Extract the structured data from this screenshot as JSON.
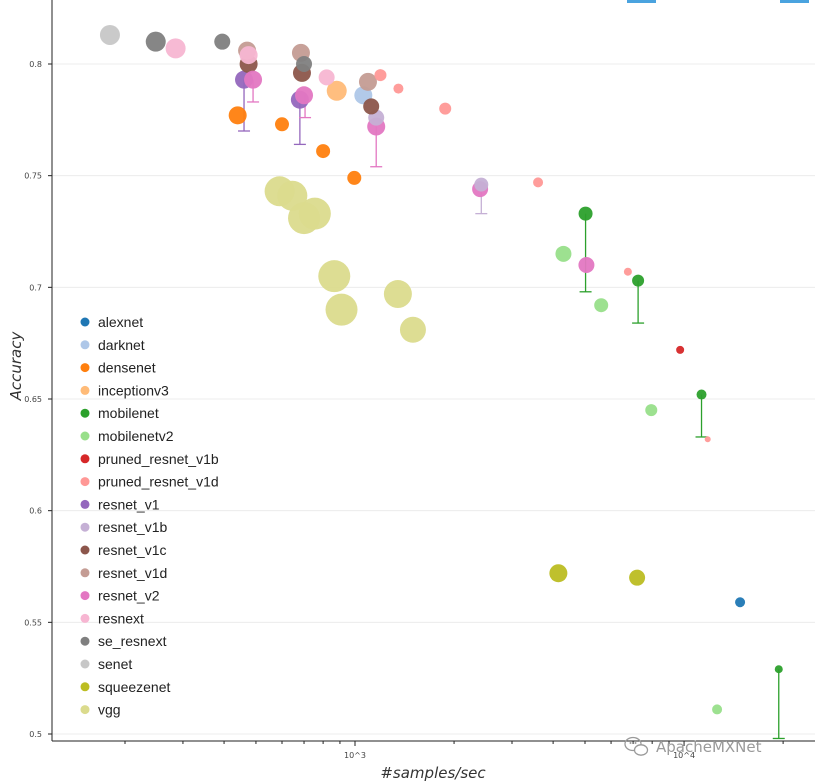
{
  "chart_data": {
    "type": "scatter",
    "title": "",
    "xlabel": "#samples/sec",
    "ylabel": "Accuracy",
    "x_scale": "log",
    "xlim": [
      120,
      25000
    ],
    "ylim": [
      0.498,
      0.826
    ],
    "x_ticks": [
      {
        "value": 1000,
        "label": "10^3"
      },
      {
        "value": 10000,
        "label": "10^4"
      }
    ],
    "y_ticks": [
      {
        "value": 0.5,
        "label": "0.5"
      },
      {
        "value": 0.55,
        "label": "0.55"
      },
      {
        "value": 0.6,
        "label": "0.6"
      },
      {
        "value": 0.65,
        "label": "0.65"
      },
      {
        "value": 0.7,
        "label": "0.7"
      },
      {
        "value": 0.75,
        "label": "0.75"
      },
      {
        "value": 0.8,
        "label": "0.8"
      }
    ],
    "grid": "horizontal",
    "legend_position": "left",
    "series": [
      {
        "name": "alexnet",
        "color": "#1f77b4",
        "points": [
          {
            "x": 14800,
            "y": 0.559,
            "size": 5
          }
        ]
      },
      {
        "name": "darknet",
        "color": "#aec7e8",
        "points": [
          {
            "x": 1060,
            "y": 0.786,
            "size": 9
          }
        ]
      },
      {
        "name": "densenet",
        "color": "#ff7f0e",
        "points": [
          {
            "x": 440,
            "y": 0.777,
            "size": 9
          },
          {
            "x": 600,
            "y": 0.773,
            "size": 7
          },
          {
            "x": 800,
            "y": 0.761,
            "size": 7
          },
          {
            "x": 995,
            "y": 0.749,
            "size": 7
          }
        ]
      },
      {
        "name": "inceptionv3",
        "color": "#ffbb78",
        "points": [
          {
            "x": 880,
            "y": 0.788,
            "size": 10
          }
        ]
      },
      {
        "name": "mobilenet",
        "color": "#2ca02c",
        "points": [
          {
            "x": 5020,
            "y": 0.733,
            "size": 7
          },
          {
            "x": 7250,
            "y": 0.703,
            "size": 6
          },
          {
            "x": 11300,
            "y": 0.652,
            "size": 5
          },
          {
            "x": 19400,
            "y": 0.529,
            "size": 4
          }
        ]
      },
      {
        "name": "mobilenetv2",
        "color": "#98df8a",
        "points": [
          {
            "x": 4300,
            "y": 0.715,
            "size": 8
          },
          {
            "x": 5600,
            "y": 0.692,
            "size": 7
          },
          {
            "x": 7950,
            "y": 0.645,
            "size": 6
          },
          {
            "x": 12600,
            "y": 0.511,
            "size": 5
          }
        ]
      },
      {
        "name": "pruned_resnet_v1b",
        "color": "#d62728",
        "points": [
          {
            "x": 9730,
            "y": 0.672,
            "size": 4
          }
        ]
      },
      {
        "name": "pruned_resnet_v1d",
        "color": "#ff9896",
        "points": [
          {
            "x": 1195,
            "y": 0.795,
            "size": 6
          },
          {
            "x": 1355,
            "y": 0.789,
            "size": 5
          },
          {
            "x": 1880,
            "y": 0.78,
            "size": 6
          },
          {
            "x": 3600,
            "y": 0.747,
            "size": 5
          },
          {
            "x": 6750,
            "y": 0.707,
            "size": 4
          },
          {
            "x": 11800,
            "y": 0.632,
            "size": 3
          }
        ]
      },
      {
        "name": "resnet_v1",
        "color": "#9467bd",
        "points": [
          {
            "x": 460,
            "y": 0.793,
            "size": 9
          },
          {
            "x": 680,
            "y": 0.784,
            "size": 9
          }
        ]
      },
      {
        "name": "resnet_v1b",
        "color": "#c5b0d5",
        "points": [
          {
            "x": 1160,
            "y": 0.776,
            "size": 8
          },
          {
            "x": 2420,
            "y": 0.746,
            "size": 7
          }
        ]
      },
      {
        "name": "resnet_v1c",
        "color": "#8c564b",
        "points": [
          {
            "x": 475,
            "y": 0.8,
            "size": 9
          },
          {
            "x": 690,
            "y": 0.796,
            "size": 9
          },
          {
            "x": 1120,
            "y": 0.781,
            "size": 8
          }
        ]
      },
      {
        "name": "resnet_v1d",
        "color": "#c49c94",
        "points": [
          {
            "x": 470,
            "y": 0.806,
            "size": 9
          },
          {
            "x": 685,
            "y": 0.805,
            "size": 9
          },
          {
            "x": 1095,
            "y": 0.792,
            "size": 9
          }
        ]
      },
      {
        "name": "resnet_v2",
        "color": "#e377c2",
        "points": [
          {
            "x": 490,
            "y": 0.793,
            "size": 9
          },
          {
            "x": 700,
            "y": 0.786,
            "size": 9
          },
          {
            "x": 1160,
            "y": 0.772,
            "size": 9
          },
          {
            "x": 2400,
            "y": 0.744,
            "size": 8
          },
          {
            "x": 5050,
            "y": 0.71,
            "size": 8
          }
        ]
      },
      {
        "name": "resnext",
        "color": "#f7b6d2",
        "points": [
          {
            "x": 285,
            "y": 0.807,
            "size": 10
          },
          {
            "x": 475,
            "y": 0.804,
            "size": 9
          },
          {
            "x": 820,
            "y": 0.794,
            "size": 8
          }
        ]
      },
      {
        "name": "se_resnext",
        "color": "#7f7f7f",
        "points": [
          {
            "x": 248,
            "y": 0.81,
            "size": 10
          },
          {
            "x": 395,
            "y": 0.81,
            "size": 8
          },
          {
            "x": 700,
            "y": 0.8,
            "size": 8
          }
        ]
      },
      {
        "name": "senet",
        "color": "#c7c7c7",
        "points": [
          {
            "x": 180,
            "y": 0.813,
            "size": 10
          }
        ]
      },
      {
        "name": "squeezenet",
        "color": "#bcbd22",
        "points": [
          {
            "x": 4150,
            "y": 0.572,
            "size": 9
          },
          {
            "x": 7200,
            "y": 0.57,
            "size": 8
          }
        ]
      },
      {
        "name": "vgg",
        "color": "#dbdb8d",
        "points": [
          {
            "x": 590,
            "y": 0.743,
            "size": 15
          },
          {
            "x": 645,
            "y": 0.741,
            "size": 15
          },
          {
            "x": 700,
            "y": 0.731,
            "size": 16
          },
          {
            "x": 755,
            "y": 0.733,
            "size": 16
          },
          {
            "x": 865,
            "y": 0.705,
            "size": 16
          },
          {
            "x": 910,
            "y": 0.69,
            "size": 16
          },
          {
            "x": 1350,
            "y": 0.697,
            "size": 14
          },
          {
            "x": 1500,
            "y": 0.681,
            "size": 13
          }
        ]
      }
    ],
    "error_bars": [
      {
        "x": 460,
        "y_top": 0.793,
        "y_bottom": 0.77,
        "color": "#9467bd"
      },
      {
        "x": 490,
        "y_top": 0.793,
        "y_bottom": 0.783,
        "color": "#e377c2"
      },
      {
        "x": 680,
        "y_top": 0.784,
        "y_bottom": 0.764,
        "color": "#9467bd"
      },
      {
        "x": 705,
        "y_top": 0.786,
        "y_bottom": 0.776,
        "color": "#e377c2"
      },
      {
        "x": 1160,
        "y_top": 0.772,
        "y_bottom": 0.754,
        "color": "#e377c2"
      },
      {
        "x": 2420,
        "y_top": 0.746,
        "y_bottom": 0.733,
        "color": "#c5b0d5"
      },
      {
        "x": 5020,
        "y_top": 0.733,
        "y_bottom": 0.698,
        "color": "#2ca02c"
      },
      {
        "x": 7250,
        "y_top": 0.703,
        "y_bottom": 0.684,
        "color": "#2ca02c"
      },
      {
        "x": 11300,
        "y_top": 0.652,
        "y_bottom": 0.633,
        "color": "#2ca02c"
      },
      {
        "x": 19400,
        "y_top": 0.529,
        "y_bottom": 0.498,
        "color": "#2ca02c"
      }
    ]
  },
  "watermark": {
    "text": "ApacheMXNet",
    "icon": "wechat-icon"
  }
}
